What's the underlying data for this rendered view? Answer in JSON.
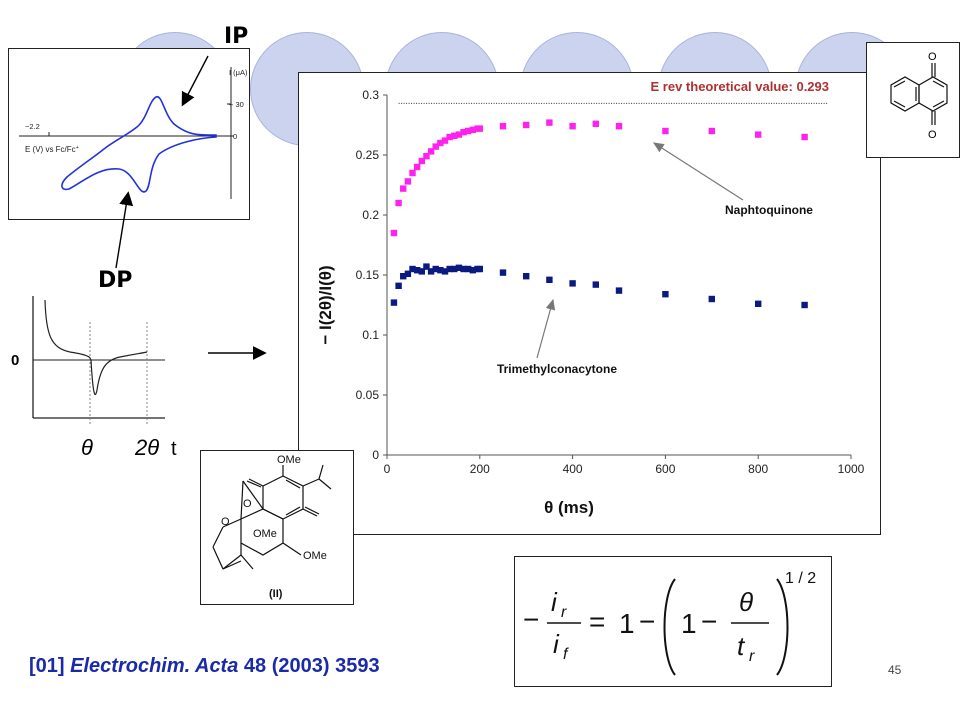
{
  "slide": {
    "page_number": "45",
    "reference": {
      "tag": "[01]",
      "journal": "Electrochim. Acta",
      "citation": "48 (2003) 3593"
    },
    "colors": {
      "decor_circle_fill": "#ccd3ee",
      "decor_circle_stroke": "#aab3dd",
      "reference_text": "#1a2aa8",
      "naphthoquinone_series": "#ff22ee",
      "trimethylconacytone_series": "#0a1a80",
      "cv_curve": "#2233dd"
    }
  },
  "cv_inset": {
    "ip_label": "IP",
    "dp_label": "DP",
    "x_axis_label": "E (V) vs Fc/Fc",
    "x_axis_superscript": "+",
    "x_tick": "−2.2",
    "y_axis_label": "I (μA)",
    "y_tick_top": "+ 30",
    "y_tick_zero": "0"
  },
  "step_inset": {
    "zero_label": "0",
    "theta_label": "θ",
    "two_theta_label": "2θ",
    "t_label": "t"
  },
  "structures": {
    "naphthoquinone_label": "",
    "compound_ome_top": "OMe",
    "compound_ome_mid": "OMe",
    "compound_ome_right": "OMe",
    "compound_o_ring": "O",
    "compound_id": "(II)"
  },
  "equation": {
    "lhs_num": "i",
    "lhs_num_sub": "r",
    "lhs_den": "i",
    "lhs_den_sub": "f",
    "one": "1",
    "theta": "θ",
    "t": "t",
    "t_sub": "r",
    "exponent": "1 / 2",
    "minus": "−",
    "equals": "="
  },
  "chart_data": {
    "type": "scatter",
    "title": "",
    "xlabel": "θ (ms)",
    "ylabel": "− I(2θ)/I(θ)",
    "xlim": [
      0,
      1000
    ],
    "ylim": [
      0,
      0.3
    ],
    "x_ticks": [
      "0",
      "200",
      "400",
      "600",
      "800",
      "1000"
    ],
    "y_ticks": [
      "0",
      "0.05",
      "0.1",
      "0.15",
      "0.2",
      "0.25",
      "0.3"
    ],
    "grid": false,
    "reference_line": {
      "label": "E rev theoretical value: 0.293",
      "y": 0.293
    },
    "series": [
      {
        "name": "Naphtoquinone",
        "marker": "square",
        "x": [
          15,
          25,
          35,
          45,
          55,
          65,
          75,
          85,
          95,
          105,
          115,
          125,
          135,
          145,
          155,
          165,
          175,
          185,
          195,
          200,
          250,
          300,
          350,
          400,
          450,
          500,
          600,
          700,
          800,
          900
        ],
        "y": [
          0.185,
          0.21,
          0.222,
          0.228,
          0.235,
          0.24,
          0.245,
          0.249,
          0.253,
          0.257,
          0.26,
          0.262,
          0.265,
          0.266,
          0.267,
          0.269,
          0.27,
          0.271,
          0.272,
          0.272,
          0.274,
          0.275,
          0.277,
          0.274,
          0.276,
          0.274,
          0.27,
          0.27,
          0.267,
          0.265
        ]
      },
      {
        "name": "Trimethylconacytone",
        "marker": "square",
        "x": [
          15,
          25,
          35,
          45,
          55,
          65,
          75,
          85,
          95,
          105,
          115,
          125,
          135,
          145,
          155,
          165,
          175,
          185,
          195,
          200,
          250,
          300,
          350,
          400,
          450,
          500,
          600,
          700,
          800,
          900
        ],
        "y": [
          0.127,
          0.141,
          0.149,
          0.151,
          0.155,
          0.154,
          0.153,
          0.157,
          0.153,
          0.155,
          0.154,
          0.153,
          0.155,
          0.155,
          0.156,
          0.155,
          0.155,
          0.154,
          0.155,
          0.155,
          0.152,
          0.149,
          0.146,
          0.143,
          0.142,
          0.137,
          0.134,
          0.13,
          0.126,
          0.125
        ]
      }
    ]
  }
}
